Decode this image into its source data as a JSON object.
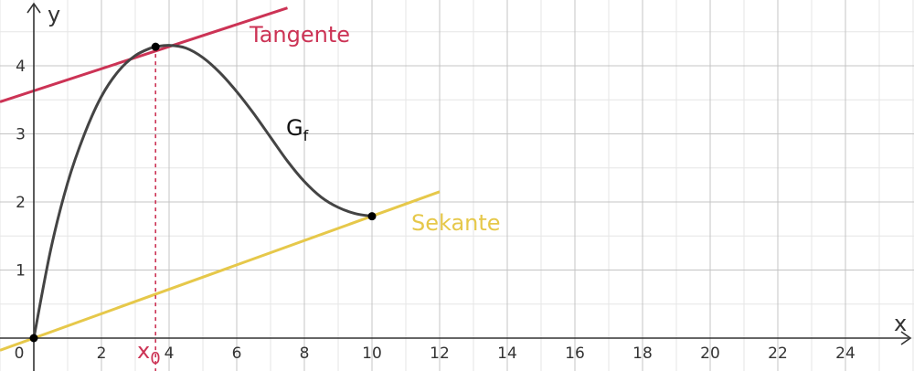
{
  "chart_data": {
    "type": "line",
    "xlabel": "x",
    "ylabel": "y",
    "xlim": [
      -1,
      26
    ],
    "ylim": [
      -0.5,
      4.85
    ],
    "grid": true,
    "minor_grid_step_x": 1,
    "minor_grid_step_y": 0.5,
    "x_ticks": [
      {
        "value": 0,
        "label": "0"
      },
      {
        "value": 2,
        "label": "2"
      },
      {
        "value": 4,
        "label": "4"
      },
      {
        "value": 6,
        "label": "6"
      },
      {
        "value": 8,
        "label": "8"
      },
      {
        "value": 10,
        "label": "10"
      },
      {
        "value": 12,
        "label": "12"
      },
      {
        "value": 14,
        "label": "14"
      },
      {
        "value": 16,
        "label": "16"
      },
      {
        "value": 18,
        "label": "18"
      },
      {
        "value": 20,
        "label": "20"
      },
      {
        "value": 22,
        "label": "22"
      },
      {
        "value": 24,
        "label": "24"
      }
    ],
    "y_ticks": [
      {
        "value": 1,
        "label": "1"
      },
      {
        "value": 2,
        "label": "2"
      },
      {
        "value": 3,
        "label": "3"
      },
      {
        "value": 4,
        "label": "4"
      }
    ],
    "series": [
      {
        "name": "G",
        "name_subscript": "f",
        "color": "#444444",
        "x": [
          0,
          0.5,
          1,
          1.5,
          2,
          2.5,
          3,
          3.5,
          3.6,
          4,
          4.5,
          5,
          5.5,
          6,
          6.5,
          7,
          7.5,
          8,
          8.5,
          9,
          9.5,
          10
        ],
        "y": [
          0,
          1.3,
          2.28,
          3.0,
          3.55,
          3.92,
          4.15,
          4.27,
          4.28,
          4.3,
          4.26,
          4.12,
          3.9,
          3.62,
          3.3,
          2.95,
          2.6,
          2.3,
          2.07,
          1.92,
          1.83,
          1.79
        ]
      }
    ],
    "lines": [
      {
        "name": "Tangente",
        "color": "#cc3355",
        "x": [
          -1,
          7.5
        ],
        "y": [
          3.47,
          4.85
        ]
      },
      {
        "name": "Sekante",
        "color": "#e6c84a",
        "x": [
          -1,
          12
        ],
        "y": [
          -0.179,
          2.15
        ]
      }
    ],
    "points": [
      {
        "x": 0,
        "y": 0
      },
      {
        "x": 3.6,
        "y": 4.28
      },
      {
        "x": 10,
        "y": 1.79
      }
    ],
    "markers": [
      {
        "name": "x",
        "subscript": "0",
        "x": 3.6,
        "color": "#cc3355"
      }
    ]
  }
}
